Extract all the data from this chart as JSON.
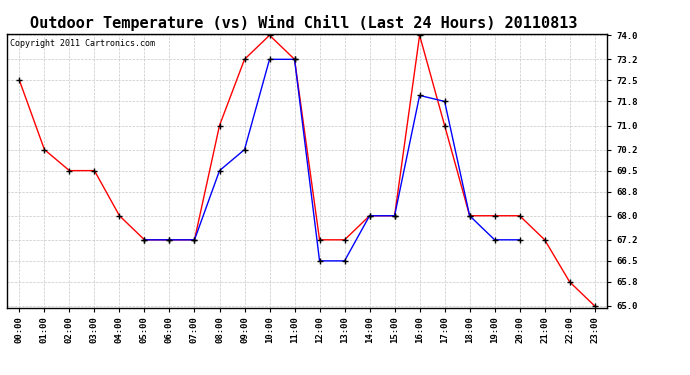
{
  "title": "Outdoor Temperature (vs) Wind Chill (Last 24 Hours) 20110813",
  "copyright": "Copyright 2011 Cartronics.com",
  "hours": [
    "00:00",
    "01:00",
    "02:00",
    "03:00",
    "04:00",
    "05:00",
    "06:00",
    "07:00",
    "08:00",
    "09:00",
    "10:00",
    "11:00",
    "12:00",
    "13:00",
    "14:00",
    "15:00",
    "16:00",
    "17:00",
    "18:00",
    "19:00",
    "20:00",
    "21:00",
    "22:00",
    "23:00"
  ],
  "outdoor_temp": [
    72.5,
    70.2,
    69.5,
    69.5,
    68.0,
    67.2,
    67.2,
    67.2,
    71.0,
    73.2,
    74.0,
    73.2,
    67.2,
    67.2,
    68.0,
    68.0,
    74.0,
    71.0,
    68.0,
    68.0,
    68.0,
    67.2,
    65.8,
    65.0
  ],
  "wind_chill": [
    null,
    null,
    null,
    null,
    null,
    67.2,
    67.2,
    67.2,
    69.5,
    70.2,
    73.2,
    73.2,
    66.5,
    66.5,
    68.0,
    68.0,
    72.0,
    71.8,
    68.0,
    67.2,
    67.2,
    null,
    null,
    null
  ],
  "temp_color": "#ff0000",
  "wind_color": "#0000ff",
  "bg_color": "#ffffff",
  "plot_bg": "#ffffff",
  "grid_color": "#c8c8c8",
  "ylim_min": 65.0,
  "ylim_max": 74.0,
  "yticks": [
    65.0,
    65.8,
    66.5,
    67.2,
    68.0,
    68.8,
    69.5,
    70.2,
    71.0,
    71.8,
    72.5,
    73.2,
    74.0
  ],
  "title_fontsize": 11,
  "tick_fontsize": 6.5,
  "copyright_fontsize": 6
}
